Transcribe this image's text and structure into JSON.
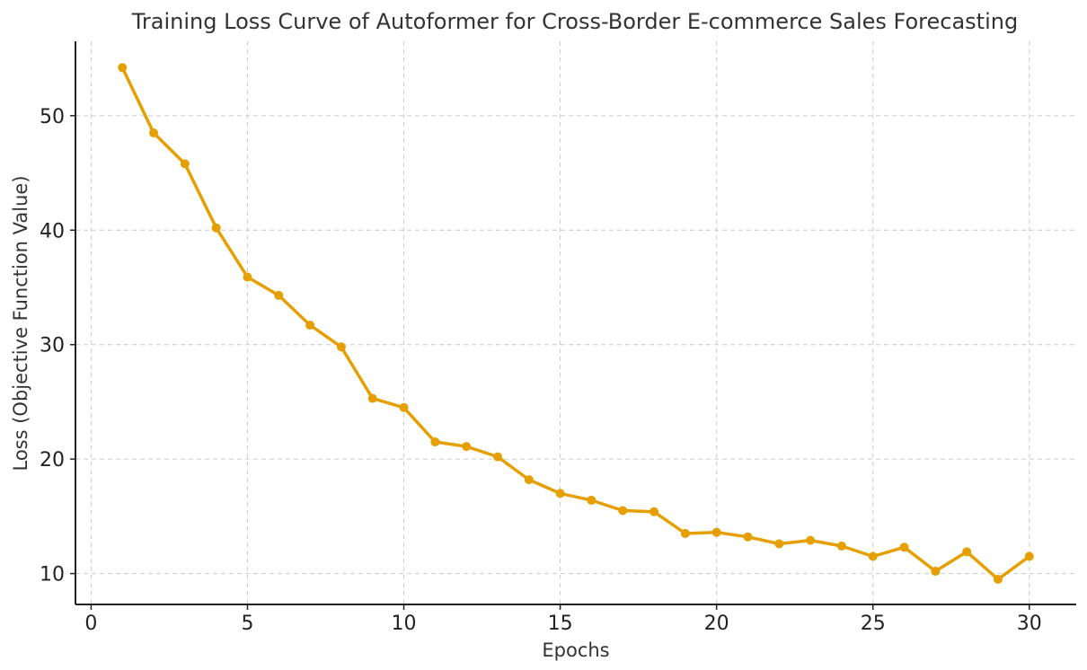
{
  "chart_data": {
    "type": "line",
    "title": "Training Loss Curve of Autoformer for Cross-Border E-commerce Sales Forecasting",
    "xlabel": "Epochs",
    "ylabel": "Loss (Objective Function Value)",
    "xlim": [
      -0.5,
      31.5
    ],
    "ylim": [
      7.3,
      56.5
    ],
    "xticks": [
      0,
      5,
      10,
      15,
      20,
      25,
      30
    ],
    "yticks": [
      10,
      20,
      30,
      40,
      50
    ],
    "grid": true,
    "line_color": "#E69F00",
    "series": [
      {
        "x": [
          1,
          2,
          3,
          4,
          5,
          6,
          7,
          8,
          9,
          10,
          11,
          12,
          13,
          14,
          15,
          16,
          17,
          18,
          19,
          20,
          21,
          22,
          23,
          24,
          25,
          26,
          27,
          28,
          29,
          30
        ],
        "values": [
          54.2,
          48.5,
          45.8,
          40.2,
          35.9,
          34.3,
          31.7,
          29.8,
          25.3,
          24.5,
          21.5,
          21.1,
          20.2,
          18.2,
          17.0,
          16.4,
          15.5,
          15.4,
          13.5,
          13.6,
          13.2,
          12.6,
          12.9,
          12.4,
          11.5,
          12.3,
          10.2,
          11.9,
          9.5,
          11.5
        ]
      }
    ]
  }
}
